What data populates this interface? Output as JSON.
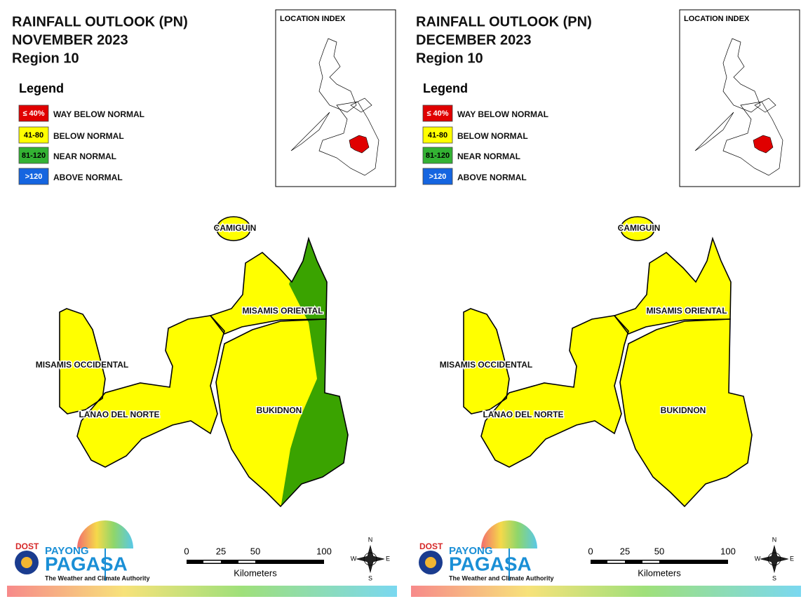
{
  "panels": [
    {
      "title": "RAINFALL OUTLOOK (PN)",
      "month": "NOVEMBER 2023",
      "region": "Region 10",
      "location_index": "LOCATION INDEX",
      "legend": {
        "title": "Legend",
        "items": [
          {
            "key": "≤ 40%",
            "label": "WAY BELOW NORMAL"
          },
          {
            "key": "41-80",
            "label": "BELOW NORMAL"
          },
          {
            "key": "81-120",
            "label": "NEAR NORMAL"
          },
          {
            "key": ">120",
            "label": "ABOVE NORMAL"
          }
        ]
      },
      "map_labels": [
        "CAMIGUIN",
        "MISAMIS ORIENTAL",
        "MISAMIS OCCIDENTAL",
        "LANAO DEL NORTE",
        "BUKIDNON"
      ],
      "scale": {
        "ticks": [
          0,
          25,
          50,
          100
        ],
        "unit": "Kilometers"
      },
      "compass": [
        "N",
        "E",
        "S",
        "W"
      ],
      "logo": {
        "agency": "DOST",
        "brand_top": "PAYONG",
        "brand": "PAGASA",
        "tagline": "The Weather and Climate Authority"
      }
    },
    {
      "title": "RAINFALL OUTLOOK (PN)",
      "month": "DECEMBER 2023",
      "region": "Region 10",
      "location_index": "LOCATION INDEX",
      "legend": {
        "title": "Legend",
        "items": [
          {
            "key": "≤ 40%",
            "label": "WAY BELOW NORMAL"
          },
          {
            "key": "41-80",
            "label": "BELOW NORMAL"
          },
          {
            "key": "81-120",
            "label": "NEAR NORMAL"
          },
          {
            "key": ">120",
            "label": "ABOVE NORMAL"
          }
        ]
      },
      "map_labels": [
        "CAMIGUIN",
        "MISAMIS ORIENTAL",
        "MISAMIS OCCIDENTAL",
        "LANAO DEL NORTE",
        "BUKIDNON"
      ],
      "scale": {
        "ticks": [
          0,
          25,
          50,
          100
        ],
        "unit": "Kilometers"
      },
      "compass": [
        "N",
        "E",
        "S",
        "W"
      ],
      "logo": {
        "agency": "DOST",
        "brand_top": "PAYONG",
        "brand": "PAGASA",
        "tagline": "The Weather and Climate Authority"
      }
    }
  ]
}
